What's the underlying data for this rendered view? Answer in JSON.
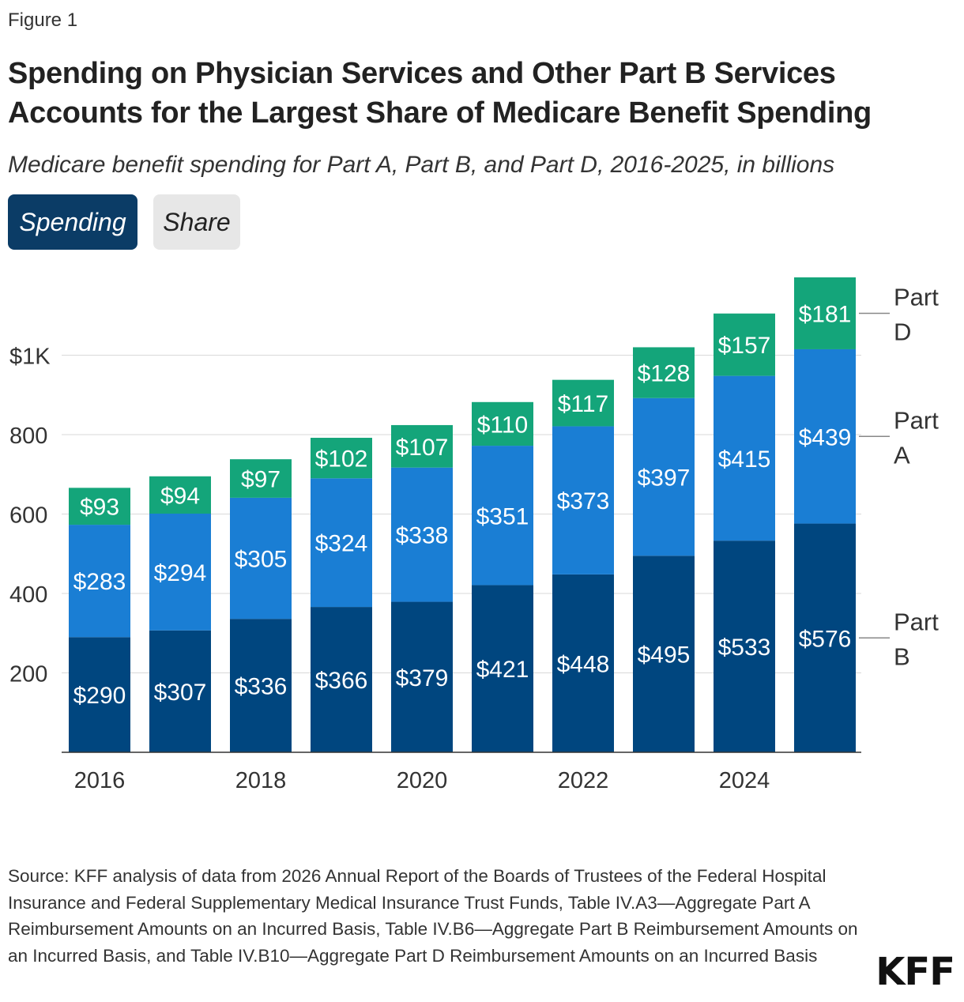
{
  "figure_label": "Figure 1",
  "title": "Spending on Physician Services and Other Part B Services Accounts for the Largest Share of Medicare Benefit Spending",
  "subtitle": "Medicare benefit spending for Part A, Part B, and Part D, 2016-2025, in billions",
  "toggles": {
    "spending_label": "Spending",
    "share_label": "Share",
    "selected": "Spending"
  },
  "source": "Source: KFF analysis of data from 2026 Annual Report of the Boards of Trustees of the Federal Hospital Insurance and Federal Supplementary Medical Insurance Trust Funds, Table IV.A3—Aggregate Part A Reimbursement Amounts on an Incurred Basis, Table IV.B6—Aggregate Part B Reimbursement Amounts on an Incurred Basis, and Table IV.B10—Aggregate Part D Reimbursement Amounts on an Incurred Basis",
  "logo": "KFF",
  "chart_data": {
    "type": "bar",
    "stacked": true,
    "categories": [
      "2016",
      "2017",
      "2018",
      "2019",
      "2020",
      "2021",
      "2022",
      "2023",
      "2024",
      "2025"
    ],
    "x_tick_labels": [
      "2016",
      "2018",
      "2020",
      "2022",
      "2024"
    ],
    "y_ticks": [
      200,
      400,
      600,
      800,
      1000
    ],
    "y_tick_labels": [
      "200",
      "400",
      "600",
      "800",
      "$1K"
    ],
    "ylim": [
      0,
      1200
    ],
    "grid": true,
    "value_prefix": "$",
    "series": [
      {
        "name": "Part B",
        "color": "#00467f",
        "values": [
          290,
          307,
          336,
          366,
          379,
          421,
          448,
          495,
          533,
          576
        ]
      },
      {
        "name": "Part A",
        "color": "#1a7ed4",
        "values": [
          283,
          294,
          305,
          324,
          338,
          351,
          373,
          397,
          415,
          439
        ]
      },
      {
        "name": "Part D",
        "color": "#14a57a",
        "values": [
          93,
          94,
          97,
          102,
          107,
          110,
          117,
          128,
          157,
          181
        ]
      }
    ],
    "legend_placement": "right, inline labels"
  }
}
